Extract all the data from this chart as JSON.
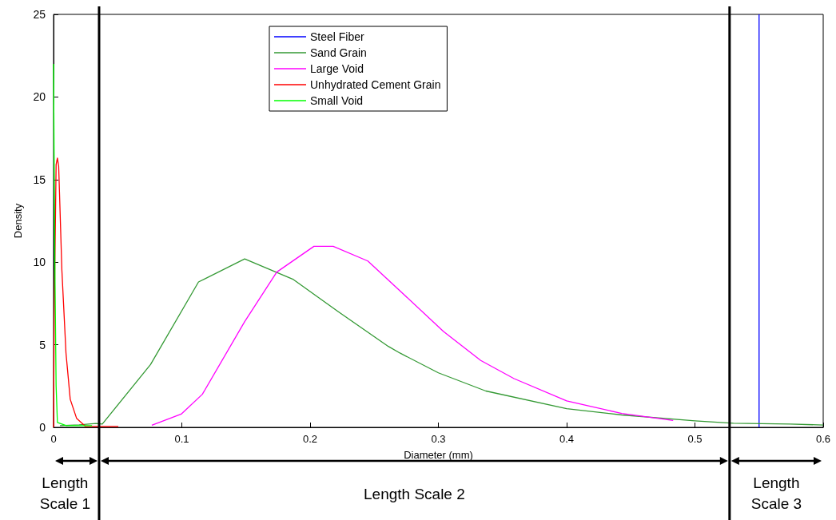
{
  "chart_data": {
    "type": "line",
    "xlabel": "Diameter (mm)",
    "ylabel": "Density",
    "xlim": [
      0,
      0.6
    ],
    "xticks": [
      0,
      0.1,
      0.2,
      0.3,
      0.4,
      0.5,
      0.6
    ],
    "ylim": [
      0,
      25
    ],
    "yticks": [
      0,
      5,
      10,
      15,
      20,
      25
    ],
    "grid": false,
    "legend": "top",
    "marker": "none",
    "line_style": "solid",
    "series": [
      {
        "name": "Steel Fiber",
        "color": "#0000ff",
        "x": [
          0.55,
          0.55
        ],
        "values": [
          0,
          25
        ]
      },
      {
        "name": "Sand Grain",
        "color": "#339933",
        "x": [
          0.005,
          0.02,
          0.033,
          0.038,
          0.0756,
          0.113,
          0.149,
          0.187,
          0.222,
          0.261,
          0.27,
          0.3,
          0.337,
          0.4,
          0.443,
          0.5,
          0.53,
          0.574,
          0.6
        ],
        "values": [
          0.1,
          0.15,
          0.24,
          0.2,
          3.8,
          8.8,
          10.2,
          8.95,
          7.0,
          4.9,
          4.5,
          3.3,
          2.2,
          1.13,
          0.75,
          0.39,
          0.25,
          0.2,
          0.14
        ]
      },
      {
        "name": "Large Void",
        "color": "#ff00ff",
        "x": [
          0.0766,
          0.0995,
          0.116,
          0.149,
          0.174,
          0.203,
          0.218,
          0.245,
          0.274,
          0.304,
          0.333,
          0.359,
          0.4,
          0.443,
          0.483
        ],
        "values": [
          0.13,
          0.8,
          2.0,
          6.4,
          9.4,
          10.96,
          10.96,
          10.07,
          7.98,
          5.8,
          4.05,
          2.95,
          1.6,
          0.84,
          0.42
        ]
      },
      {
        "name": "Unhydrated Cement Grain",
        "color": "#ff0000",
        "x": [
          0,
          0.0005,
          0.002,
          0.003,
          0.004,
          0.0065,
          0.0097,
          0.013,
          0.018,
          0.025,
          0.0505
        ],
        "values": [
          0,
          6.6,
          15.9,
          16.3,
          15.8,
          9.5,
          4.5,
          1.7,
          0.54,
          0.05,
          0.05
        ]
      },
      {
        "name": "Small Void",
        "color": "#00ff00",
        "x": [
          0,
          0.001,
          0.002,
          0.003,
          0.01,
          0.03
        ],
        "values": [
          22,
          10,
          2.5,
          0.3,
          0.1,
          0.1
        ]
      }
    ],
    "ref_lines": [
      {
        "axis": "x",
        "value": 0.0355,
        "color": "#000000"
      },
      {
        "axis": "x",
        "value": 0.527,
        "color": "#000000"
      }
    ],
    "annotations": [
      "Length Scale 1",
      "Length Scale 2",
      "Length Scale 3"
    ]
  }
}
